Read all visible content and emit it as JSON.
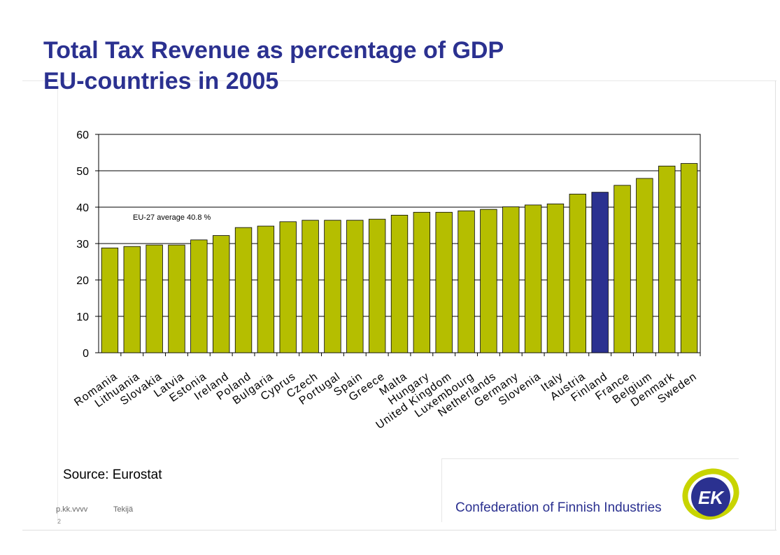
{
  "title": {
    "line1": "Total Tax Revenue as percentage of GDP",
    "line2": "EU-countries in 2005"
  },
  "chart_data": {
    "type": "bar",
    "categories": [
      "Romania",
      "Lithuania",
      "Slovakia",
      "Latvia",
      "Estonia",
      "Ireland",
      "Poland",
      "Bulgaria",
      "Cyprus",
      "Czech",
      "Portugal",
      "Spain",
      "Greece",
      "Malta",
      "Hungary",
      "United Kingdom",
      "Luxembourg",
      "Netherlands",
      "Germany",
      "Slovenia",
      "Italy",
      "Austria",
      "Finland",
      "France",
      "Belgium",
      "Denmark",
      "Sweden"
    ],
    "values": [
      28.8,
      29.2,
      29.6,
      29.6,
      31.0,
      32.2,
      34.4,
      34.8,
      36.0,
      36.4,
      36.4,
      36.4,
      36.7,
      37.8,
      38.6,
      38.6,
      39.0,
      39.4,
      40.1,
      40.6,
      40.9,
      43.6,
      44.1,
      46.0,
      47.9,
      51.3,
      52.0
    ],
    "highlight": "Finland",
    "ylim": [
      0,
      60
    ],
    "yticks": [
      0,
      10,
      20,
      30,
      40,
      50,
      60
    ],
    "xlabel": "",
    "ylabel": "",
    "grid": true,
    "annotation": "EU-27 average 40.8 %",
    "colors": {
      "bar": "#b5be00",
      "highlight": "#2b3190",
      "bar_stroke": "#000000"
    }
  },
  "source": "Source: Eurostat",
  "footer": {
    "date": "p.kk.vvvv",
    "author": "Tekijä",
    "mark": "2"
  },
  "logo": {
    "text": "Confederation of Finnish Industries",
    "mark": "EK",
    "colors": {
      "ring": "#c8d400",
      "disc": "#2b3190"
    }
  }
}
